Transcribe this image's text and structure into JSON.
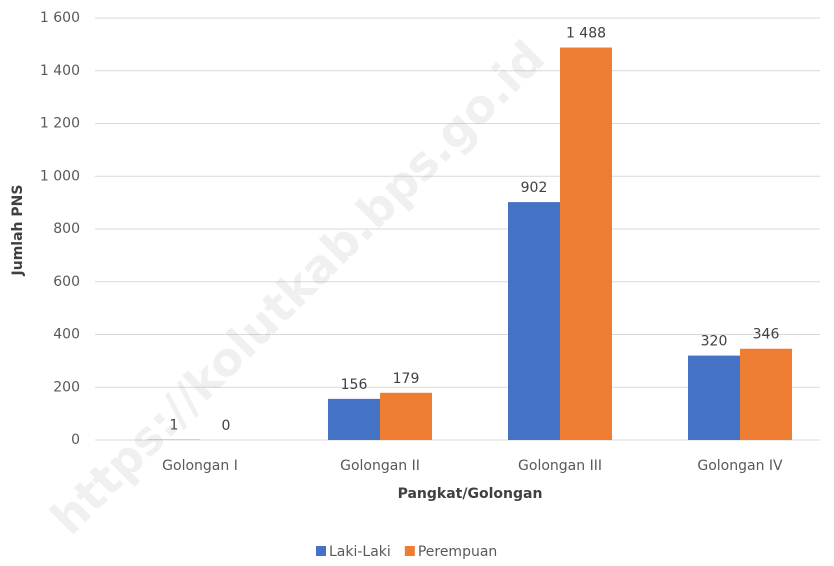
{
  "chart_data": {
    "type": "bar",
    "watermark": "https://kolutkab.bps.go.id",
    "x_label": "Pangkat/Golongan",
    "y_label": "Jumlah PNS",
    "categories": [
      "Golongan I",
      "Golongan II",
      "Golongan III",
      "Golongan IV"
    ],
    "series": [
      {
        "name": "Laki-Laki",
        "color": "#4472c4",
        "values": [
          1,
          156,
          902,
          320
        ]
      },
      {
        "name": "Perempuan",
        "color": "#ed7d31",
        "values": [
          0,
          179,
          1488,
          346
        ],
        "value_labels": [
          "0",
          "179",
          "1 488",
          "346"
        ]
      }
    ],
    "ylim": [
      0,
      1600
    ],
    "yticks": [
      0,
      200,
      400,
      600,
      800,
      {
        "value": 1000,
        "label": "1 000"
      },
      {
        "value": 1200,
        "label": "1 200"
      },
      {
        "value": 1400,
        "label": "1 400"
      },
      {
        "value": 1600,
        "label": "1 600"
      }
    ],
    "grid": true,
    "legend": "bottom"
  }
}
